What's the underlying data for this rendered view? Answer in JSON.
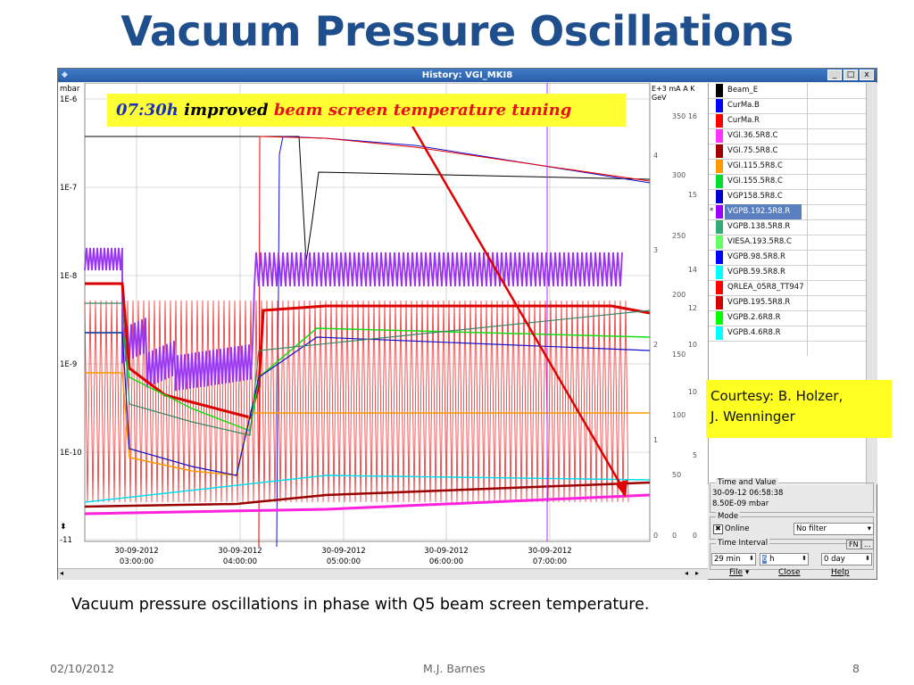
{
  "slide": {
    "title": "Vacuum Pressure Oscillations",
    "caption": "Vacuum pressure oscillations in phase with Q5 beam screen temperature.",
    "footer_date": "02/10/2012",
    "footer_author": "M.J. Barnes",
    "footer_page": "8",
    "courtesy_line1": "Courtesy: B. Holzer,",
    "courtesy_line2": "J. Wenninger"
  },
  "window": {
    "title": "History: VGI_MKI8",
    "minimize_label": "_",
    "maximize_label": "□",
    "close_label": "x"
  },
  "annotation": {
    "time": "07:30h",
    "mid": " improved ",
    "rest": "beam screen temperature tuning"
  },
  "plot": {
    "y_unit": "mbar",
    "y_ticks": [
      "1E-6",
      "1E-7",
      "1E-8",
      "1E-9",
      "1E-10",
      "-11"
    ],
    "right_units": [
      "E+3",
      "mA",
      "A",
      "K"
    ],
    "right_unit2": "GeV",
    "right_axis1": [
      "350",
      "300",
      "250",
      "200",
      "150",
      "100",
      "50",
      "0"
    ],
    "right_axis2": [
      "4",
      "3",
      "2",
      "1",
      "0"
    ],
    "right_axis3": [
      "16",
      "15",
      "14",
      "12",
      "10",
      "10",
      "5",
      "0"
    ],
    "x_dates": [
      "30-09-2012",
      "30-09-2012",
      "30-09-2012",
      "30-09-2012",
      "30-09-2012"
    ],
    "x_times": [
      "03:00:00",
      "04:00:00",
      "05:00:00",
      "06:00:00",
      "07:00:00"
    ]
  },
  "legend": {
    "items": [
      {
        "label": "Beam_E",
        "color": "#000000"
      },
      {
        "label": "CurMa.B",
        "color": "#0000ff"
      },
      {
        "label": "CurMa.R",
        "color": "#ff0000"
      },
      {
        "label": "VGI.36.5R8.C",
        "color": "#ff33ff"
      },
      {
        "label": "VGI.75.5R8.C",
        "color": "#a00000"
      },
      {
        "label": "VGI.115.5R8.C",
        "color": "#ff9900"
      },
      {
        "label": "VGI.155.5R8.C",
        "color": "#00dd33"
      },
      {
        "label": "VGP158.5R8.C",
        "color": "#0000cc"
      },
      {
        "label": "VGPB.192.5R8.R",
        "color": "#9900ff"
      },
      {
        "label": "VGPB.138.5R8.R",
        "color": "#33aa77"
      },
      {
        "label": "VIESA.193.5R8.C",
        "color": "#66ff66"
      },
      {
        "label": "VGPB.98.5R8.R",
        "color": "#0000ff"
      },
      {
        "label": "VGPB.59.5R8.R",
        "color": "#00ffff"
      },
      {
        "label": "QRLEA_05R8_TT947",
        "color": "#ff0000"
      },
      {
        "label": "VGPB.195.5R8.R",
        "color": "#d00000"
      },
      {
        "label": "VGPB.2.6R8.R",
        "color": "#00ff00"
      },
      {
        "label": "VGPB.4.6R8.R",
        "color": "#00ffff"
      }
    ],
    "selected_index": 8,
    "selected_marker": "*"
  },
  "time_value": {
    "label": "Time and Value",
    "time": "30-09-12 06:58:38",
    "value": "8.50E-09 mbar"
  },
  "mode": {
    "label": "Mode",
    "online_label": "Online",
    "online_checked": true,
    "filter": "No filter"
  },
  "interval": {
    "label": "Time Interval",
    "fn_label": "FN",
    "more_label": "...",
    "min_value": "29 min",
    "hour_value": "6",
    "hour_unit": "h",
    "day_value": "0 day"
  },
  "menu": {
    "file": "File",
    "close": "Close",
    "help": "Help"
  }
}
